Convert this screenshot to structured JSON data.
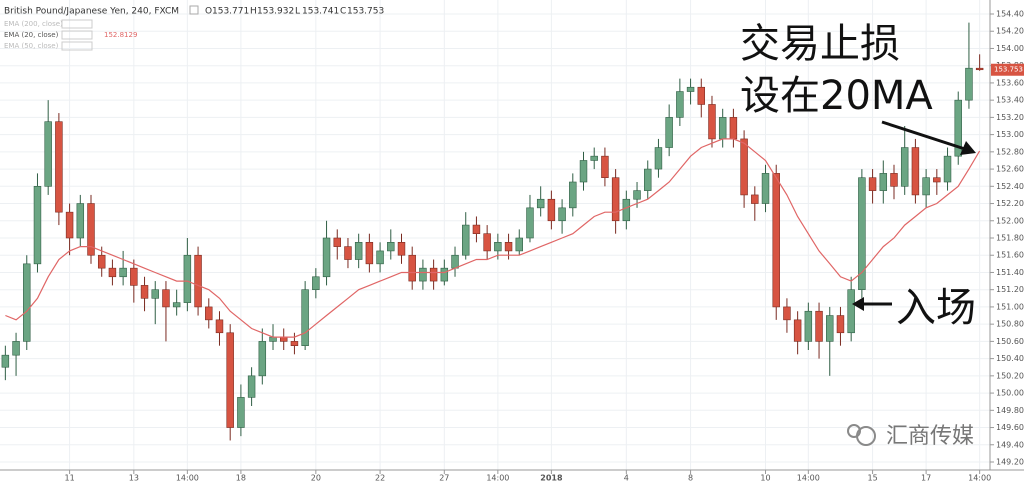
{
  "chart_data": {
    "type": "candlestick",
    "title": "British Pound/Japanese Yen, 240, FXCM",
    "ohlc_header": [
      {
        "label": "O",
        "value": 153.771
      },
      {
        "label": "H",
        "value": 153.932
      },
      {
        "label": "L",
        "value": 153.741
      },
      {
        "label": "C",
        "value": 153.753
      }
    ],
    "indicators": [
      "EMA (200, close)",
      "EMA (20, close)",
      "EMA (50, close)"
    ],
    "indicator_value": 152.8129,
    "categories": [
      null,
      null,
      null,
      null,
      null,
      null,
      "11",
      null,
      null,
      null,
      null,
      null,
      "13",
      null,
      null,
      null,
      null,
      "14:00",
      null,
      null,
      null,
      null,
      "18",
      null,
      null,
      null,
      null,
      null,
      null,
      "20",
      null,
      null,
      null,
      null,
      null,
      "22",
      null,
      null,
      null,
      null,
      null,
      "27",
      null,
      null,
      null,
      null,
      "14:00",
      null,
      null,
      null,
      null,
      "2018",
      null,
      null,
      null,
      null,
      null,
      null,
      "4",
      null,
      null,
      null,
      null,
      null,
      "8",
      null,
      null,
      null,
      null,
      null,
      null,
      "10",
      null,
      null,
      null,
      "14:00",
      null,
      null,
      null,
      null,
      null,
      "15",
      null,
      null,
      null,
      null,
      "17",
      null,
      null,
      null,
      null,
      "14:00"
    ],
    "open": [
      150.3,
      150.44,
      150.6,
      151.5,
      152.4,
      153.15,
      152.1,
      151.8,
      152.2,
      151.6,
      151.45,
      151.35,
      151.45,
      151.25,
      151.1,
      151.2,
      151.0,
      151.05,
      151.6,
      151.0,
      150.85,
      150.7,
      149.6,
      149.95,
      150.2,
      150.6,
      150.65,
      150.6,
      150.55,
      151.2,
      151.35,
      151.8,
      151.7,
      151.55,
      151.75,
      151.5,
      151.65,
      151.75,
      151.6,
      151.3,
      151.45,
      151.3,
      151.45,
      151.6,
      151.95,
      151.85,
      151.65,
      151.75,
      151.65,
      151.8,
      152.15,
      152.25,
      152.0,
      152.15,
      152.45,
      152.7,
      152.75,
      152.5,
      152.0,
      152.25,
      152.35,
      152.6,
      152.85,
      153.2,
      153.5,
      153.55,
      153.35,
      152.95,
      153.2,
      152.95,
      152.3,
      152.2,
      152.55,
      151.0,
      150.85,
      150.6,
      150.95,
      150.6,
      150.9,
      150.7,
      151.2,
      152.5,
      152.35,
      152.55,
      152.4,
      152.85,
      152.3,
      152.5,
      152.45,
      152.75,
      153.4,
      153.771
    ],
    "high": [
      150.55,
      150.7,
      151.6,
      152.55,
      153.4,
      153.25,
      152.2,
      152.3,
      152.3,
      151.7,
      151.55,
      151.65,
      151.55,
      151.35,
      151.3,
      151.3,
      151.2,
      151.8,
      151.7,
      151.1,
      150.95,
      150.8,
      150.1,
      150.3,
      150.75,
      150.8,
      150.75,
      150.7,
      151.3,
      151.45,
      152.0,
      151.9,
      151.8,
      151.85,
      151.85,
      151.75,
      151.9,
      151.85,
      151.7,
      151.55,
      151.55,
      151.55,
      151.7,
      152.1,
      152.05,
      151.95,
      151.85,
      151.85,
      151.9,
      152.3,
      152.4,
      152.35,
      152.25,
      152.55,
      152.8,
      152.85,
      152.85,
      152.6,
      152.35,
      152.45,
      152.7,
      152.95,
      153.35,
      153.65,
      153.65,
      153.65,
      153.45,
      153.3,
      153.3,
      153.05,
      152.4,
      152.65,
      152.65,
      151.1,
      150.95,
      151.05,
      151.05,
      151.0,
      151.0,
      151.35,
      152.6,
      152.6,
      152.7,
      152.65,
      153.1,
      152.95,
      152.6,
      152.6,
      152.85,
      153.5,
      154.3,
      153.932
    ],
    "low": [
      150.15,
      150.2,
      150.5,
      151.4,
      152.3,
      151.95,
      151.6,
      151.7,
      151.5,
      151.35,
      151.25,
      151.25,
      151.05,
      150.95,
      150.8,
      150.6,
      150.9,
      150.95,
      150.9,
      150.75,
      150.55,
      149.45,
      149.5,
      149.85,
      150.1,
      150.5,
      150.5,
      150.45,
      150.5,
      151.1,
      151.25,
      151.55,
      151.45,
      151.45,
      151.4,
      151.4,
      151.55,
      151.5,
      151.2,
      151.2,
      151.2,
      151.25,
      151.35,
      151.55,
      151.75,
      151.55,
      151.55,
      151.55,
      151.6,
      151.75,
      152.05,
      151.9,
      151.85,
      152.05,
      152.35,
      152.6,
      152.4,
      151.85,
      151.9,
      152.15,
      152.25,
      152.5,
      152.75,
      153.1,
      153.35,
      153.2,
      152.85,
      152.85,
      152.85,
      152.15,
      152.0,
      152.1,
      150.85,
      150.7,
      150.45,
      150.5,
      150.4,
      150.2,
      150.55,
      150.6,
      151.1,
      152.2,
      152.2,
      152.25,
      152.3,
      152.2,
      152.15,
      152.3,
      152.35,
      152.65,
      153.3,
      153.741
    ],
    "close": [
      150.44,
      150.6,
      151.5,
      152.4,
      153.15,
      152.1,
      151.8,
      152.2,
      151.6,
      151.45,
      151.35,
      151.45,
      151.25,
      151.1,
      151.2,
      151.0,
      151.05,
      151.6,
      151.0,
      150.85,
      150.7,
      149.6,
      149.95,
      150.2,
      150.6,
      150.65,
      150.6,
      150.55,
      151.2,
      151.35,
      151.8,
      151.7,
      151.55,
      151.75,
      151.5,
      151.65,
      151.75,
      151.6,
      151.3,
      151.45,
      151.3,
      151.45,
      151.6,
      151.95,
      151.85,
      151.65,
      151.75,
      151.65,
      151.8,
      152.15,
      152.25,
      152.0,
      152.15,
      152.45,
      152.7,
      152.75,
      152.5,
      152.0,
      152.25,
      152.35,
      152.6,
      152.85,
      153.2,
      153.5,
      153.55,
      153.35,
      152.95,
      153.2,
      152.95,
      152.3,
      152.2,
      152.55,
      151.0,
      150.85,
      150.6,
      150.95,
      150.6,
      150.9,
      150.7,
      151.2,
      152.5,
      152.35,
      152.55,
      152.4,
      152.85,
      152.3,
      152.5,
      152.45,
      152.75,
      153.4,
      153.771,
      153.753
    ],
    "up_color": "#6ba583",
    "down_color": "#d75442",
    "series": [
      {
        "name": "EMA (20, close)",
        "color": "#e06666",
        "values": [
          150.9,
          150.85,
          150.95,
          151.1,
          151.35,
          151.55,
          151.65,
          151.7,
          151.7,
          151.65,
          151.6,
          151.55,
          151.5,
          151.45,
          151.4,
          151.35,
          151.3,
          151.3,
          151.25,
          151.2,
          151.1,
          150.95,
          150.85,
          150.75,
          150.7,
          150.65,
          150.65,
          150.65,
          150.7,
          150.8,
          150.9,
          151.0,
          151.1,
          151.2,
          151.25,
          151.3,
          151.35,
          151.4,
          151.4,
          151.4,
          151.4,
          151.4,
          151.45,
          151.5,
          151.55,
          151.55,
          151.6,
          151.6,
          151.6,
          151.65,
          151.7,
          151.75,
          151.8,
          151.85,
          151.95,
          152.05,
          152.1,
          152.1,
          152.15,
          152.2,
          152.25,
          152.35,
          152.45,
          152.6,
          152.75,
          152.85,
          152.9,
          152.95,
          152.95,
          152.9,
          152.8,
          152.7,
          152.5,
          152.3,
          152.05,
          151.85,
          151.65,
          151.5,
          151.35,
          151.3,
          151.4,
          151.55,
          151.7,
          151.8,
          151.95,
          152.05,
          152.15,
          152.2,
          152.3,
          152.4,
          152.6,
          152.81
        ]
      }
    ],
    "ylim": [
      149.2,
      154.4
    ],
    "yticks": [
      {
        "value": 149.2,
        "label": "149.200"
      },
      {
        "value": 149.4,
        "label": "149.400"
      },
      {
        "value": 149.6,
        "label": "149.600"
      },
      {
        "value": 149.8,
        "label": "149.800"
      },
      {
        "value": 150.0,
        "label": "150.000"
      },
      {
        "value": 150.2,
        "label": "150.200"
      },
      {
        "value": 150.4,
        "label": "150.400"
      },
      {
        "value": 150.6,
        "label": "150.600"
      },
      {
        "value": 150.8,
        "label": "150.800"
      },
      {
        "value": 151.0,
        "label": "151.000"
      },
      {
        "value": 151.2,
        "label": "151.200"
      },
      {
        "value": 151.4,
        "label": "151.400"
      },
      {
        "value": 151.6,
        "label": "151.600"
      },
      {
        "value": 151.8,
        "label": "151.800"
      },
      {
        "value": 152.0,
        "label": "152.000"
      },
      {
        "value": 152.2,
        "label": "152.200"
      },
      {
        "value": 152.4,
        "label": "152.400"
      },
      {
        "value": 152.6,
        "label": "152.600"
      },
      {
        "value": 152.8,
        "label": "152.800"
      },
      {
        "value": 153.0,
        "label": "153.000"
      },
      {
        "value": 153.2,
        "label": "153.200"
      },
      {
        "value": 153.4,
        "label": "153.400"
      },
      {
        "value": 153.6,
        "label": "153.600"
      },
      {
        "value": 153.8,
        "label": "153.800"
      },
      {
        "value": 154.0,
        "label": "154.000"
      },
      {
        "value": 154.2,
        "label": "154.200"
      },
      {
        "value": 154.4,
        "label": "154.400"
      }
    ],
    "grid": true,
    "annotations": [
      "交易止损",
      "设在20MA",
      "入场"
    ],
    "watermark": "汇商传媒"
  }
}
